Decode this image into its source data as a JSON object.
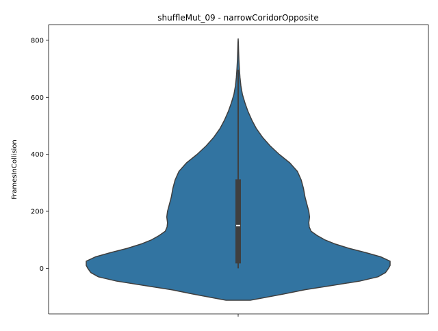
{
  "chart_data": {
    "type": "violin",
    "title": "shuffleMut_09 - narrowCoridorOpposite",
    "xlabel": "",
    "ylabel": "FramesInCollision",
    "ylim": [
      -160,
      855
    ],
    "yticks": [
      0,
      200,
      400,
      600,
      800
    ],
    "ytick_labels": [
      "0",
      "200",
      "400",
      "600",
      "800"
    ],
    "grid": false,
    "legend": "none",
    "colors": {
      "violin_fill": "#3274a1",
      "violin_edge": "#3f3f3f",
      "box": "#3f3f3f",
      "median": "#ffffff"
    },
    "series": [
      {
        "box": {
          "whisker_low": 0,
          "q1": 17,
          "median": 150,
          "q3": 312,
          "whisker_high": 697
        },
        "density": [
          [
            -112,
            0.08
          ],
          [
            -105,
            0.15
          ],
          [
            -90,
            0.3
          ],
          [
            -75,
            0.44
          ],
          [
            -60,
            0.62
          ],
          [
            -45,
            0.8
          ],
          [
            -30,
            0.92
          ],
          [
            -15,
            0.97
          ],
          [
            0,
            0.99
          ],
          [
            10,
            1.0
          ],
          [
            25,
            1.0
          ],
          [
            40,
            0.94
          ],
          [
            55,
            0.84
          ],
          [
            70,
            0.73
          ],
          [
            85,
            0.64
          ],
          [
            100,
            0.57
          ],
          [
            115,
            0.52
          ],
          [
            130,
            0.48
          ],
          [
            145,
            0.468
          ],
          [
            160,
            0.465
          ],
          [
            180,
            0.47
          ],
          [
            200,
            0.465
          ],
          [
            220,
            0.455
          ],
          [
            250,
            0.44
          ],
          [
            280,
            0.43
          ],
          [
            310,
            0.415
          ],
          [
            340,
            0.39
          ],
          [
            370,
            0.34
          ],
          [
            400,
            0.27
          ],
          [
            430,
            0.21
          ],
          [
            460,
            0.16
          ],
          [
            490,
            0.12
          ],
          [
            520,
            0.09
          ],
          [
            550,
            0.065
          ],
          [
            580,
            0.045
          ],
          [
            610,
            0.028
          ],
          [
            640,
            0.018
          ],
          [
            670,
            0.012
          ],
          [
            700,
            0.008
          ],
          [
            730,
            0.005
          ],
          [
            760,
            0.003
          ],
          [
            790,
            0.0015
          ],
          [
            805,
            0.0
          ]
        ]
      }
    ]
  }
}
